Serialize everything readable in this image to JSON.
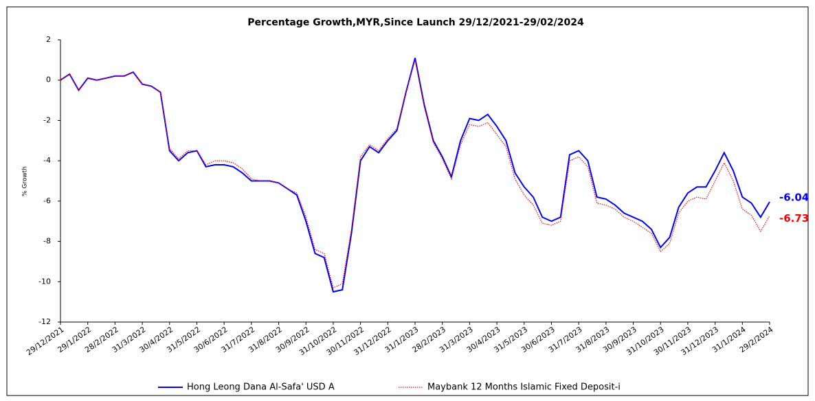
{
  "chart_data": {
    "type": "line",
    "title": "Percentage Growth,MYR,Since Launch 29/12/2021-29/02/2024",
    "y_label": "% Growth",
    "categories": [
      "29/12/2021",
      null,
      null,
      "29/1/2022",
      null,
      null,
      "28/2/2022",
      null,
      null,
      "31/3/2022",
      null,
      null,
      "30/4/2022",
      null,
      null,
      "31/5/2022",
      null,
      null,
      "30/6/2022",
      null,
      null,
      "31/7/2022",
      null,
      null,
      "31/8/2022",
      null,
      null,
      "30/9/2022",
      null,
      null,
      "31/10/2022",
      null,
      null,
      "30/11/2022",
      null,
      null,
      "31/12/2022",
      null,
      null,
      "31/1/2023",
      null,
      null,
      "28/2/2023",
      null,
      null,
      "31/3/2023",
      null,
      null,
      "30/4/2023",
      null,
      null,
      "31/5/2023",
      null,
      null,
      "30/6/2023",
      null,
      null,
      "31/7/2023",
      null,
      null,
      "31/8/2023",
      null,
      null,
      "30/9/2023",
      null,
      null,
      "31/10/2023",
      null,
      null,
      "30/11/2023",
      null,
      null,
      "31/12/2023",
      null,
      null,
      "31/1/2024",
      null,
      null,
      "29/2/2024"
    ],
    "series": [
      {
        "name": "Hong Leong Dana Al-Safa' USD A",
        "color": "#0000ff",
        "style": "solid",
        "values": [
          0,
          0.3,
          -0.5,
          0.1,
          0,
          0.1,
          0.2,
          0.2,
          0.4,
          -0.2,
          -0.3,
          -0.6,
          -3.5,
          -4,
          -3.6,
          -3.5,
          -4.3,
          -4.2,
          -4.2,
          -4.3,
          -4.6,
          -5,
          -5,
          -5,
          -5.1,
          -5.4,
          -5.7,
          -7,
          -8.6,
          -8.8,
          -10.5,
          -10.4,
          -7.6,
          -4,
          -3.3,
          -3.6,
          -3,
          -2.5,
          -0.6,
          1.1,
          -1.2,
          -3,
          -3.8,
          -4.8,
          -3,
          -1.9,
          -2,
          -1.7,
          -2.3,
          -3,
          -4.6,
          -5.3,
          -5.8,
          -6.8,
          -7,
          -6.8,
          -3.7,
          -3.5,
          -4,
          -5.8,
          -5.9,
          -6.2,
          -6.6,
          -6.8,
          -7,
          -7.4,
          -8.3,
          -7.8,
          -6.3,
          -5.6,
          -5.3,
          -5.3,
          -4.5,
          -3.6,
          -4.5,
          -5.8,
          -6.1,
          -6.8,
          -6.04
        ]
      },
      {
        "name": "Maybank 12 Months Islamic Fixed Deposit-i",
        "color": "#ff0000",
        "style": "dotted",
        "values": [
          0,
          0.3,
          -0.5,
          0.1,
          0,
          0.1,
          0.2,
          0.2,
          0.4,
          -0.2,
          -0.3,
          -0.6,
          -3.4,
          -3.9,
          -3.5,
          -3.5,
          -4.2,
          -4,
          -4,
          -4.1,
          -4.4,
          -4.9,
          -5,
          -5,
          -5.1,
          -5.4,
          -5.6,
          -6.8,
          -8.4,
          -8.6,
          -10.3,
          -10.1,
          -7.4,
          -3.8,
          -3.2,
          -3.5,
          -2.9,
          -2.4,
          -0.6,
          1,
          -1.3,
          -3.1,
          -3.9,
          -4.9,
          -3.2,
          -2.2,
          -2.3,
          -2.1,
          -2.7,
          -3.3,
          -4.9,
          -5.7,
          -6.2,
          -7.1,
          -7.2,
          -7,
          -4,
          -3.8,
          -4.3,
          -6.1,
          -6.2,
          -6.4,
          -6.8,
          -7,
          -7.3,
          -7.6,
          -8.5,
          -8.1,
          -6.6,
          -6,
          -5.8,
          -5.9,
          -5,
          -4.1,
          -5,
          -6.4,
          -6.7,
          -7.5,
          -6.73
        ]
      }
    ],
    "ylim": [
      -12,
      2
    ],
    "yticks": [
      2,
      0,
      -2,
      -4,
      -6,
      -8,
      -10,
      -12
    ],
    "grid": false,
    "legend": "bottom"
  }
}
